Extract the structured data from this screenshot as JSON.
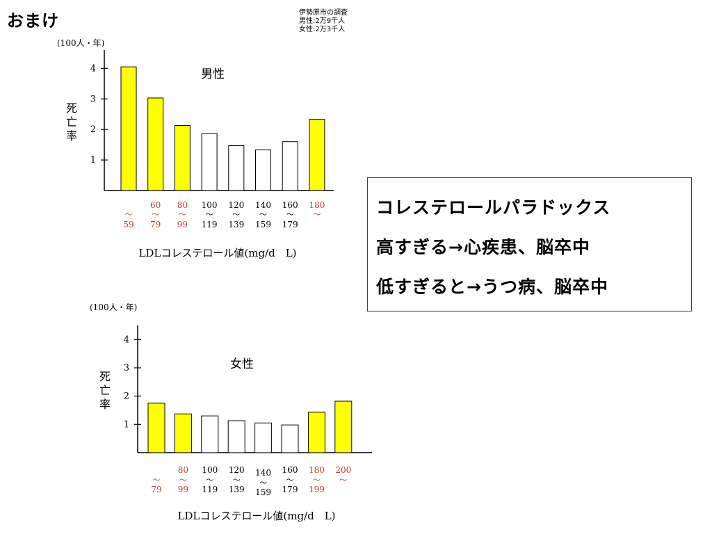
{
  "page": {
    "title": "おまけ",
    "source_note": [
      "伊勢原市の調査",
      "男性:2万9千人",
      "女性:2万3千人"
    ]
  },
  "callout": {
    "lines": [
      "コレステロールパラドックス",
      "高すぎる→心疾患、脳卒中",
      "低すぎると→うつ病、脳卒中"
    ]
  },
  "colors": {
    "highlight": "#FFFF00",
    "normal": "#FFFFFF",
    "range_red": "#C0392B"
  },
  "chart_data": [
    {
      "type": "bar",
      "title": "男性",
      "unit_label": "(100人・年)",
      "ylabel": "死亡率",
      "xlabel": "LDLコレステロール値(mg/d　L)",
      "ylim": [
        0,
        4.6
      ],
      "yticks": [
        1,
        2,
        3,
        4
      ],
      "categories": [
        {
          "top": "",
          "sep": "〜",
          "bottom": "59"
        },
        {
          "top": "60",
          "sep": "〜",
          "bottom": "79"
        },
        {
          "top": "80",
          "sep": "〜",
          "bottom": "99"
        },
        {
          "top": "100",
          "sep": "〜",
          "bottom": "119"
        },
        {
          "top": "120",
          "sep": "〜",
          "bottom": "139"
        },
        {
          "top": "140",
          "sep": "〜",
          "bottom": "159"
        },
        {
          "top": "160",
          "sep": "〜",
          "bottom": "179"
        },
        {
          "top": "180",
          "sep": "〜",
          "bottom": ""
        }
      ],
      "values": [
        4.05,
        3.03,
        2.13,
        1.87,
        1.47,
        1.33,
        1.6,
        2.33
      ],
      "highlight": [
        true,
        true,
        true,
        false,
        false,
        false,
        false,
        true
      ],
      "red_labels": [
        true,
        true,
        true,
        false,
        false,
        false,
        false,
        true
      ]
    },
    {
      "type": "bar",
      "title": "女性",
      "unit_label": "(100人・年)",
      "ylabel": "死亡率",
      "xlabel": "LDLコレステロール値(mg/d　L)",
      "ylim": [
        0,
        4.5
      ],
      "yticks": [
        1,
        2,
        3,
        4
      ],
      "categories": [
        {
          "top": "",
          "sep": "〜",
          "bottom": "79"
        },
        {
          "top": "80",
          "sep": "〜",
          "bottom": "99"
        },
        {
          "top": "100",
          "sep": "〜",
          "bottom": "119"
        },
        {
          "top": "120",
          "sep": "〜",
          "bottom": "139"
        },
        {
          "top": "140",
          "sep": "〜",
          "bottom": "159"
        },
        {
          "top": "160",
          "sep": "〜",
          "bottom": "179"
        },
        {
          "top": "180",
          "sep": "〜",
          "bottom": "199"
        },
        {
          "top": "200",
          "sep": "〜",
          "bottom": ""
        }
      ],
      "values": [
        1.75,
        1.37,
        1.3,
        1.13,
        1.05,
        0.98,
        1.43,
        1.82
      ],
      "highlight": [
        true,
        true,
        false,
        false,
        false,
        false,
        true,
        true
      ],
      "red_labels": [
        true,
        true,
        false,
        false,
        false,
        false,
        true,
        true
      ]
    }
  ]
}
